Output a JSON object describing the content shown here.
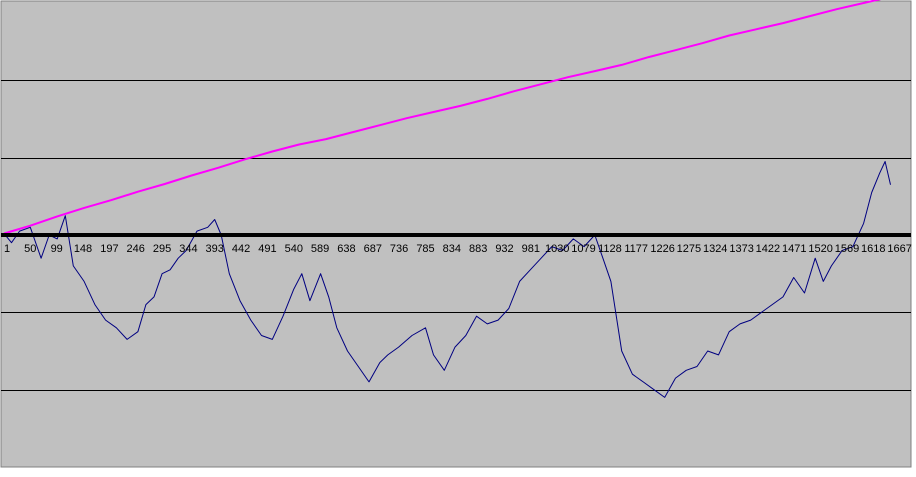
{
  "chart_data": {
    "type": "line",
    "title": "",
    "xlabel": "",
    "ylabel": "",
    "colors": {
      "plot_background": "#c0c0c0",
      "gridline": "#000000",
      "zero_axis": "#000000"
    },
    "grid": true,
    "legend": "none",
    "xlim": [
      1,
      1690
    ],
    "ylim": [
      -3,
      3
    ],
    "y_gridlines": [
      -2,
      -1,
      1,
      2
    ],
    "x_tick_labels": [
      "1",
      "50",
      "99",
      "148",
      "197",
      "246",
      "295",
      "344",
      "393",
      "442",
      "491",
      "540",
      "589",
      "638",
      "687",
      "736",
      "785",
      "834",
      "883",
      "932",
      "981",
      "1030",
      "1079",
      "1128",
      "1177",
      "1226",
      "1275",
      "1324",
      "1373",
      "1422",
      "1471",
      "1520",
      "1569",
      "1618",
      "1667"
    ],
    "series": [
      {
        "color": "#ff00ff",
        "x": [
          1,
          50,
          100,
          150,
          200,
          250,
          300,
          350,
          400,
          450,
          500,
          550,
          600,
          650,
          700,
          750,
          800,
          850,
          900,
          950,
          1000,
          1050,
          1100,
          1150,
          1200,
          1250,
          1300,
          1350,
          1400,
          1450,
          1500,
          1550,
          1600,
          1650
        ],
        "values": [
          0.02,
          0.12,
          0.24,
          0.35,
          0.45,
          0.56,
          0.66,
          0.77,
          0.87,
          0.98,
          1.08,
          1.17,
          1.24,
          1.33,
          1.42,
          1.51,
          1.59,
          1.67,
          1.76,
          1.86,
          1.95,
          2.04,
          2.12,
          2.2,
          2.3,
          2.39,
          2.48,
          2.58,
          2.66,
          2.74,
          2.83,
          2.92,
          3.0,
          3.08
        ]
      },
      {
        "color": "#000080",
        "x": [
          1,
          15,
          30,
          50,
          70,
          85,
          100,
          115,
          130,
          150,
          170,
          190,
          210,
          230,
          250,
          265,
          280,
          295,
          310,
          325,
          340,
          360,
          380,
          393,
          405,
          420,
          440,
          460,
          480,
          500,
          520,
          540,
          555,
          570,
          590,
          605,
          620,
          640,
          660,
          680,
          700,
          715,
          735,
          760,
          785,
          800,
          820,
          840,
          860,
          880,
          900,
          920,
          940,
          960,
          980,
          1000,
          1020,
          1040,
          1060,
          1080,
          1100,
          1115,
          1130,
          1150,
          1170,
          1190,
          1210,
          1230,
          1250,
          1270,
          1290,
          1310,
          1330,
          1350,
          1370,
          1390,
          1410,
          1430,
          1450,
          1470,
          1490,
          1510,
          1525,
          1540,
          1560,
          1580,
          1600,
          1615,
          1630,
          1640,
          1650
        ],
        "values": [
          0.02,
          -0.1,
          0.05,
          0.1,
          -0.3,
          0.0,
          -0.05,
          0.25,
          -0.4,
          -0.6,
          -0.9,
          -1.1,
          -1.2,
          -1.35,
          -1.25,
          -0.9,
          -0.8,
          -0.5,
          -0.45,
          -0.3,
          -0.2,
          0.05,
          0.1,
          0.2,
          0.0,
          -0.5,
          -0.85,
          -1.1,
          -1.3,
          -1.35,
          -1.05,
          -0.7,
          -0.5,
          -0.85,
          -0.5,
          -0.8,
          -1.2,
          -1.5,
          -1.7,
          -1.9,
          -1.65,
          -1.55,
          -1.45,
          -1.3,
          -1.2,
          -1.55,
          -1.75,
          -1.45,
          -1.3,
          -1.05,
          -1.15,
          -1.1,
          -0.95,
          -0.6,
          -0.45,
          -0.3,
          -0.15,
          -0.2,
          -0.05,
          -0.15,
          0.0,
          -0.3,
          -0.6,
          -1.5,
          -1.8,
          -1.9,
          -2.0,
          -2.1,
          -1.85,
          -1.75,
          -1.7,
          -1.5,
          -1.55,
          -1.25,
          -1.15,
          -1.1,
          -1.0,
          -0.9,
          -0.8,
          -0.55,
          -0.75,
          -0.3,
          -0.6,
          -0.4,
          -0.2,
          -0.15,
          0.15,
          0.55,
          0.8,
          0.95,
          0.65
        ]
      }
    ]
  }
}
